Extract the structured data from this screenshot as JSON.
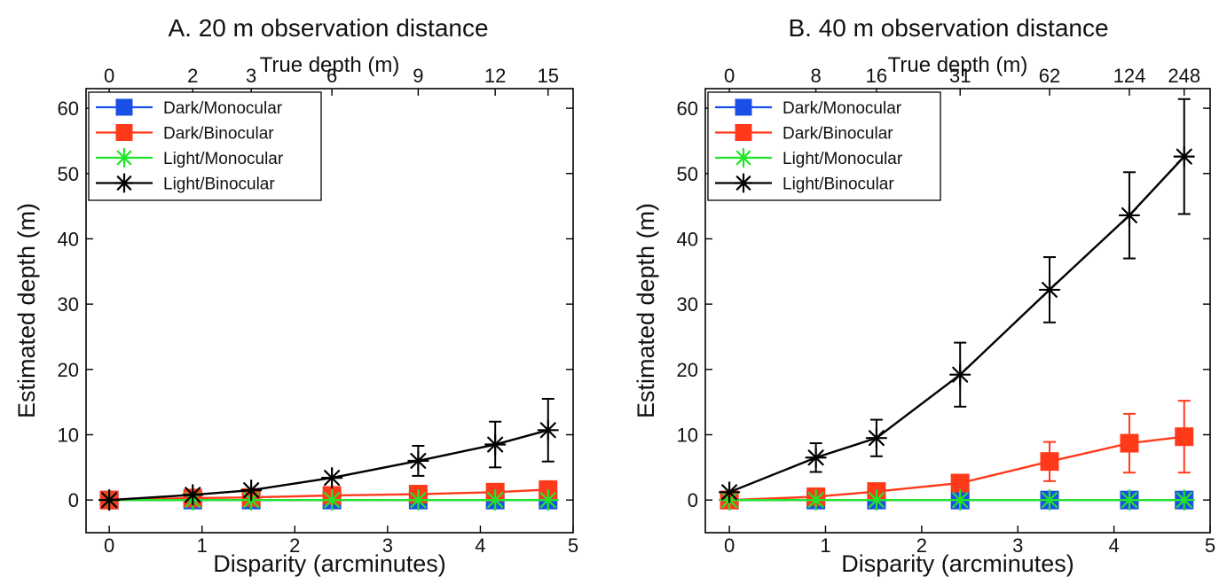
{
  "chart_data": [
    {
      "type": "line",
      "title": "A. 20 m observation distance",
      "xlabel": "Disparity (arcminutes)",
      "ylabel": "Estimated depth (m)",
      "top_xlabel": "True depth (m)",
      "xlim": [
        -0.25,
        5
      ],
      "ylim": [
        -5,
        63
      ],
      "xticks": [
        0,
        1,
        2,
        3,
        4,
        5
      ],
      "yticks": [
        0,
        10,
        20,
        30,
        40,
        50,
        60
      ],
      "top_ticks": {
        "positions": [
          0,
          0.9,
          1.53,
          2.4,
          3.33,
          4.16,
          4.73
        ],
        "labels": [
          "0",
          "2",
          "3",
          "6",
          "9",
          "12",
          "15"
        ]
      },
      "legend": "top-left",
      "x": [
        0,
        0.9,
        1.53,
        2.4,
        3.33,
        4.16,
        4.73
      ],
      "series": [
        {
          "name": "Dark/Monocular",
          "color": "#1a4fe6",
          "marker": "square",
          "values": [
            0,
            0,
            0,
            0,
            0,
            0,
            0
          ],
          "errors": [
            0,
            0,
            0,
            0,
            0,
            0,
            0
          ]
        },
        {
          "name": "Dark/Binocular",
          "color": "#ff3a1a",
          "marker": "square",
          "values": [
            0,
            0.3,
            0.4,
            0.7,
            0.9,
            1.2,
            1.6
          ],
          "errors": [
            0,
            0,
            0,
            0,
            0,
            0,
            0
          ]
        },
        {
          "name": "Light/Monocular",
          "color": "#22e52a",
          "marker": "asterisk",
          "values": [
            0,
            0,
            0,
            0,
            0,
            0,
            0
          ],
          "errors": [
            0,
            0,
            0,
            0,
            0,
            0,
            0
          ]
        },
        {
          "name": "Light/Binocular",
          "color": "#000000",
          "marker": "asterisk",
          "values": [
            0,
            0.8,
            1.5,
            3.4,
            6.0,
            8.5,
            10.7
          ],
          "errors": [
            0,
            0,
            0,
            0,
            2.3,
            3.5,
            4.8
          ]
        }
      ]
    },
    {
      "type": "line",
      "title": "B. 40 m observation distance",
      "xlabel": "Disparity (arcminutes)",
      "ylabel": "Estimated depth (m)",
      "top_xlabel": "True depth (m)",
      "xlim": [
        -0.25,
        5
      ],
      "ylim": [
        -5,
        63
      ],
      "xticks": [
        0,
        1,
        2,
        3,
        4,
        5
      ],
      "yticks": [
        0,
        10,
        20,
        30,
        40,
        50,
        60
      ],
      "top_ticks": {
        "positions": [
          0,
          0.9,
          1.53,
          2.4,
          3.33,
          4.16,
          4.73
        ],
        "labels": [
          "0",
          "8",
          "16",
          "31",
          "62",
          "124",
          "248"
        ]
      },
      "legend": "top-left",
      "x": [
        0,
        0.9,
        1.53,
        2.4,
        3.33,
        4.16,
        4.73
      ],
      "series": [
        {
          "name": "Dark/Monocular",
          "color": "#1a4fe6",
          "marker": "square",
          "values": [
            0,
            0,
            0,
            0,
            0,
            0,
            0
          ],
          "errors": [
            0,
            0,
            0,
            0,
            0,
            0,
            0
          ]
        },
        {
          "name": "Dark/Binocular",
          "color": "#ff3a1a",
          "marker": "square",
          "values": [
            0,
            0.5,
            1.3,
            2.6,
            5.9,
            8.7,
            9.7
          ],
          "errors": [
            0,
            0,
            0,
            0,
            3.0,
            4.5,
            5.5
          ]
        },
        {
          "name": "Light/Monocular",
          "color": "#22e52a",
          "marker": "asterisk",
          "values": [
            0,
            0,
            0,
            0,
            0,
            0,
            0
          ],
          "errors": [
            0,
            0,
            0,
            0,
            0,
            0,
            0
          ]
        },
        {
          "name": "Light/Binocular",
          "color": "#000000",
          "marker": "asterisk",
          "values": [
            1.2,
            6.5,
            9.5,
            19.2,
            32.2,
            43.6,
            52.6
          ],
          "errors": [
            0,
            2.2,
            2.8,
            4.9,
            5.0,
            6.6,
            8.8
          ]
        }
      ]
    }
  ]
}
